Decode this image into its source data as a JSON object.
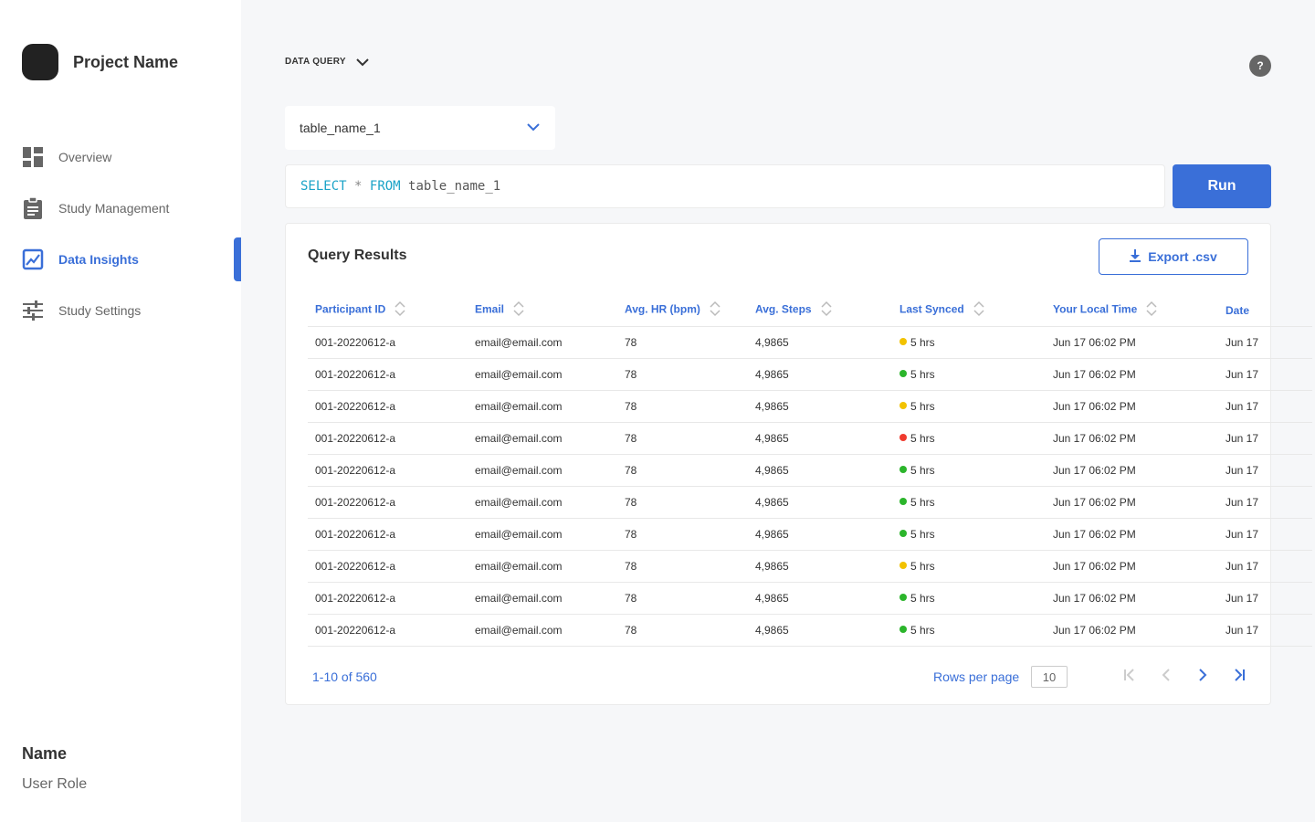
{
  "sidebar": {
    "project_name": "Project Name",
    "nav": [
      {
        "label": "Overview",
        "icon": "dashboard-icon",
        "active": false
      },
      {
        "label": "Study Management",
        "icon": "clipboard-icon",
        "active": false
      },
      {
        "label": "Data Insights",
        "icon": "chart-icon",
        "active": true
      },
      {
        "label": "Study Settings",
        "icon": "sliders-icon",
        "active": false
      }
    ],
    "user": {
      "name": "Name",
      "role": "User Role"
    }
  },
  "header": {
    "breadcrumb": "DATA QUERY",
    "help_label": "?"
  },
  "query": {
    "table_select": "table_name_1",
    "sql": {
      "kw1": "SELECT",
      "op": "*",
      "kw2": "FROM",
      "table": "table_name_1"
    },
    "run_label": "Run"
  },
  "results": {
    "title": "Query Results",
    "export_label": "Export .csv",
    "columns": [
      "Participant ID",
      "Email",
      "Avg. HR (bpm)",
      "Avg. Steps",
      "Last Synced",
      "Your Local Time",
      "Date"
    ],
    "rows": [
      {
        "id": "001-20220612-a",
        "email": "email@email.com",
        "hr": "78",
        "steps": "4,9865",
        "status": "yellow",
        "synced": "5 hrs",
        "local": "Jun 17 06:02 PM",
        "date": "Jun 17"
      },
      {
        "id": "001-20220612-a",
        "email": "email@email.com",
        "hr": "78",
        "steps": "4,9865",
        "status": "green",
        "synced": "5 hrs",
        "local": "Jun 17 06:02 PM",
        "date": "Jun 17"
      },
      {
        "id": "001-20220612-a",
        "email": "email@email.com",
        "hr": "78",
        "steps": "4,9865",
        "status": "yellow",
        "synced": "5 hrs",
        "local": "Jun 17 06:02 PM",
        "date": "Jun 17"
      },
      {
        "id": "001-20220612-a",
        "email": "email@email.com",
        "hr": "78",
        "steps": "4,9865",
        "status": "red",
        "synced": "5 hrs",
        "local": "Jun 17 06:02 PM",
        "date": "Jun 17"
      },
      {
        "id": "001-20220612-a",
        "email": "email@email.com",
        "hr": "78",
        "steps": "4,9865",
        "status": "green",
        "synced": "5 hrs",
        "local": "Jun 17 06:02 PM",
        "date": "Jun 17"
      },
      {
        "id": "001-20220612-a",
        "email": "email@email.com",
        "hr": "78",
        "steps": "4,9865",
        "status": "green",
        "synced": "5 hrs",
        "local": "Jun 17 06:02 PM",
        "date": "Jun 17"
      },
      {
        "id": "001-20220612-a",
        "email": "email@email.com",
        "hr": "78",
        "steps": "4,9865",
        "status": "green",
        "synced": "5 hrs",
        "local": "Jun 17 06:02 PM",
        "date": "Jun 17"
      },
      {
        "id": "001-20220612-a",
        "email": "email@email.com",
        "hr": "78",
        "steps": "4,9865",
        "status": "yellow",
        "synced": "5 hrs",
        "local": "Jun 17 06:02 PM",
        "date": "Jun 17"
      },
      {
        "id": "001-20220612-a",
        "email": "email@email.com",
        "hr": "78",
        "steps": "4,9865",
        "status": "green",
        "synced": "5 hrs",
        "local": "Jun 17 06:02 PM",
        "date": "Jun 17"
      },
      {
        "id": "001-20220612-a",
        "email": "email@email.com",
        "hr": "78",
        "steps": "4,9865",
        "status": "green",
        "synced": "5 hrs",
        "local": "Jun 17 06:02 PM",
        "date": "Jun 17"
      }
    ],
    "status_colors": {
      "green": "#2bb52b",
      "yellow": "#f2c200",
      "red": "#f03a2e"
    }
  },
  "pagination": {
    "range": "1-10 of 560",
    "rows_per_page_label": "Rows per page",
    "rows_per_page": "10"
  },
  "colors": {
    "accent": "#3a6fd8",
    "sql_keyword": "#1aa3c7"
  }
}
